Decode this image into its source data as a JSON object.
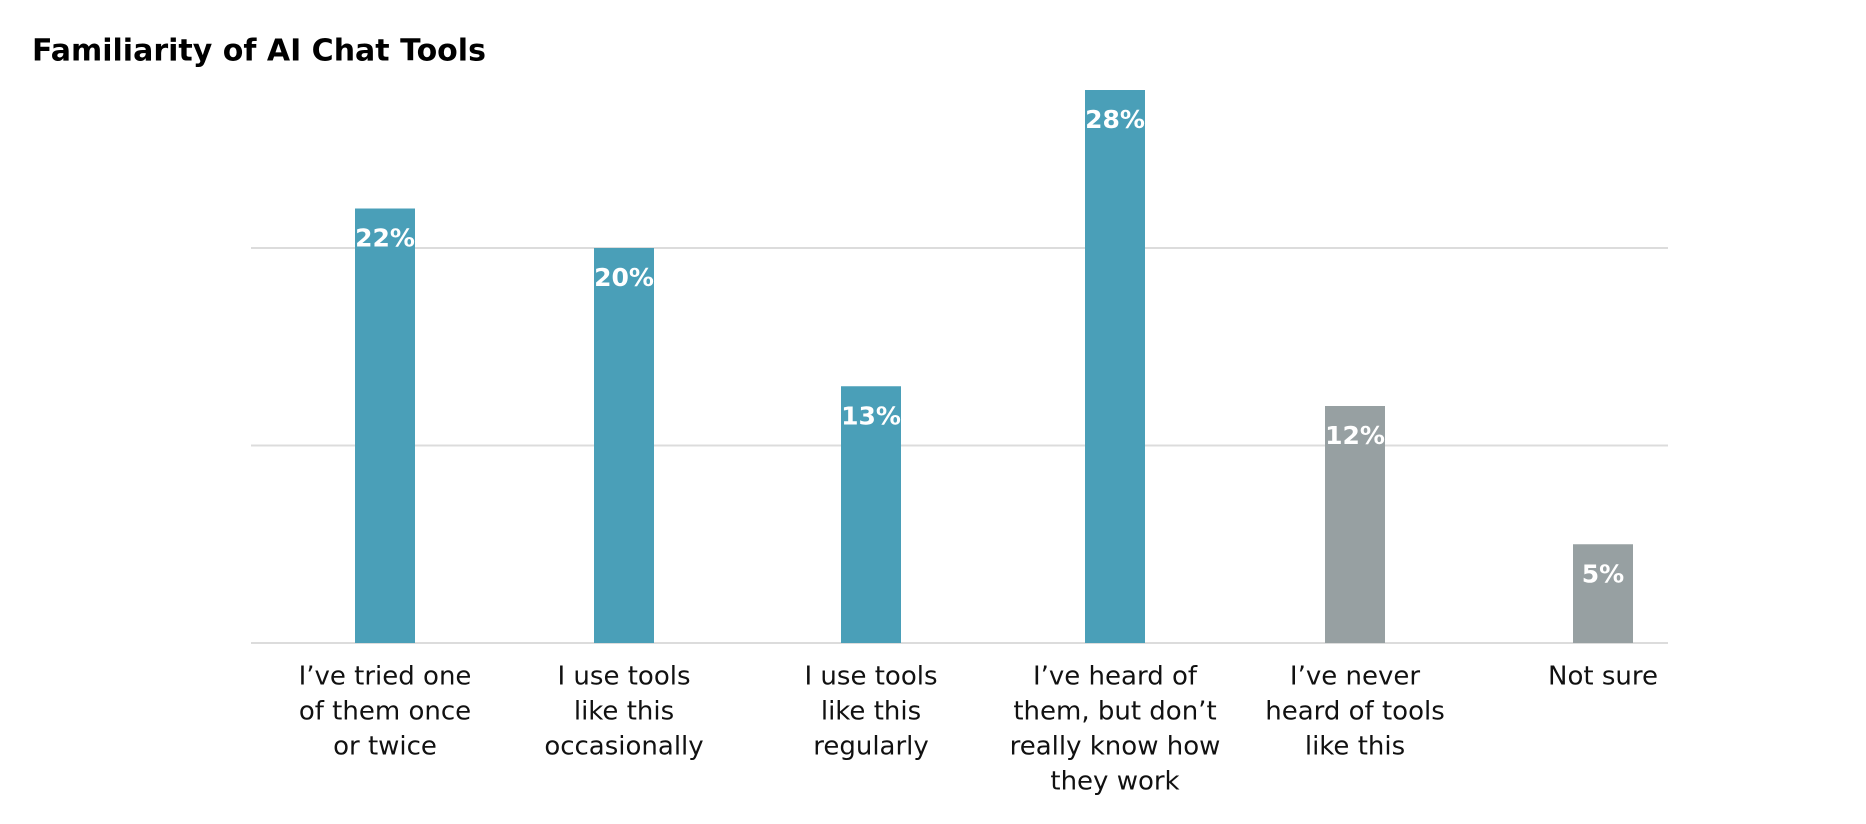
{
  "chart_data": {
    "type": "bar",
    "title": "Familiarity of AI Chat Tools",
    "categories": [
      [
        "I’ve tried one",
        "of them once",
        "or twice"
      ],
      [
        "I use tools",
        "like this",
        "occasionally"
      ],
      [
        "I use tools",
        "like this",
        "regularly"
      ],
      [
        "I’ve heard of",
        "them, but don’t",
        "really know how",
        "they work"
      ],
      [
        "I’ve never",
        "heard of tools",
        "like this"
      ],
      [
        "Not sure"
      ]
    ],
    "values": [
      22,
      20,
      13,
      28,
      12,
      5
    ],
    "value_labels": [
      "22%",
      "20%",
      "13%",
      "28%",
      "12%",
      "5%"
    ],
    "colors": [
      "#4a9fb8",
      "#4a9fb8",
      "#4a9fb8",
      "#4a9fb8",
      "#97a0a2",
      "#97a0a2"
    ],
    "ylim": [
      0,
      28
    ],
    "yticks": [
      0,
      10,
      20
    ],
    "grid": true
  }
}
